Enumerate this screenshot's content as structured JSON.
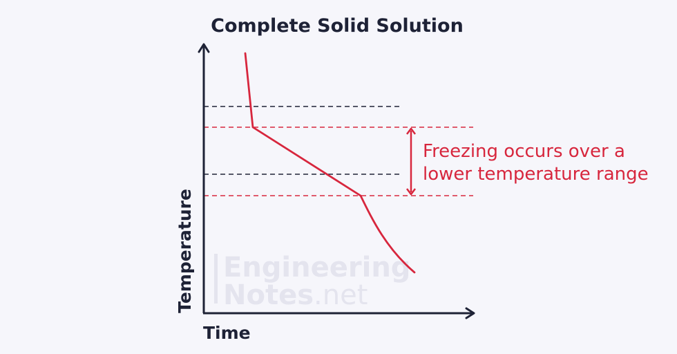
{
  "title": "Complete Solid Solution",
  "x_axis_label": "Time",
  "y_axis_label": "Temperature",
  "annotation": {
    "line1": "Freezing occurs over a",
    "line2": "lower temperature range"
  },
  "watermark": {
    "line1": "Engineering",
    "line2_bold": "Notes",
    "line2_light": ".net"
  },
  "colors": {
    "axis": "#1e2236",
    "curve": "#d7263d",
    "black_dashed": "#1e2236",
    "red_dashed": "#d7263d",
    "background": "#f6f6fb"
  }
}
